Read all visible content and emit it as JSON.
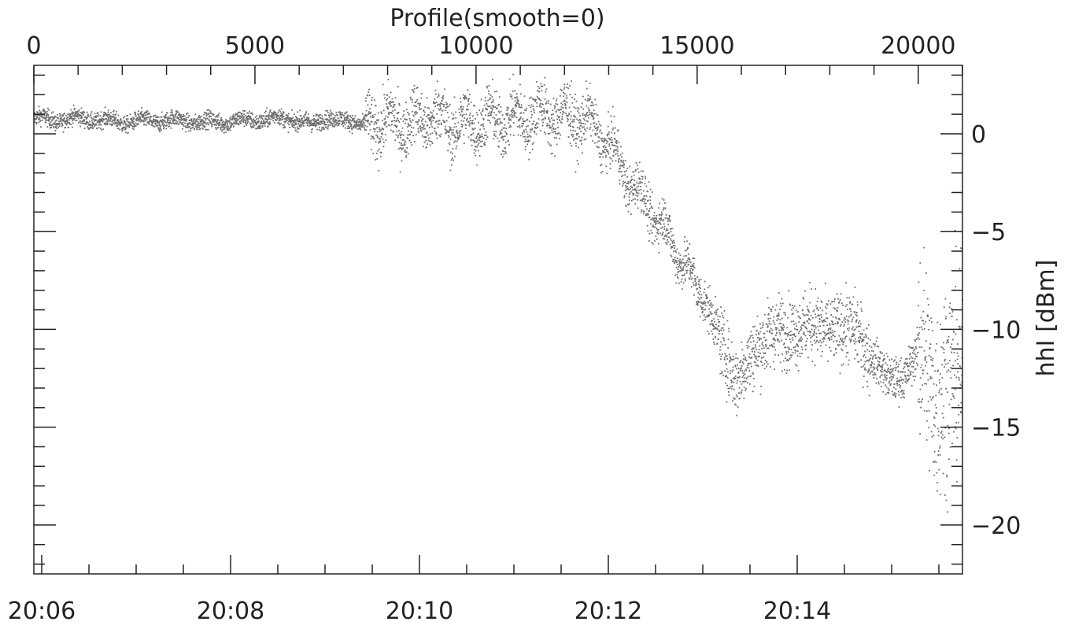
{
  "chart_data": {
    "type": "scatter",
    "title": "Profile(smooth=0)",
    "xlabel": "",
    "ylabel": "hhI [dBm]",
    "x_bottom": {
      "range_minutes": [
        "20:05:55",
        "20:15:45"
      ],
      "tick_labels": [
        "20:06",
        "20:08",
        "20:10",
        "20:12",
        "20:14"
      ],
      "tick_values": [
        "20:06",
        "20:08",
        "20:10",
        "20:12",
        "20:14"
      ]
    },
    "x_top": {
      "label": "Profile",
      "range": [
        0,
        21000
      ],
      "tick_labels": [
        "0",
        "5000",
        "10000",
        "15000",
        "20000"
      ],
      "tick_values": [
        0,
        5000,
        10000,
        15000,
        20000
      ]
    },
    "y_right": {
      "range": [
        -22.5,
        3.5
      ],
      "tick_labels": [
        "0",
        "−5",
        "−10",
        "−15",
        "−20"
      ],
      "tick_values": [
        0,
        -5,
        -10,
        -15,
        -20
      ]
    },
    "marker_color": "#6e6e6e",
    "grid": false,
    "series": [
      {
        "points_profile_vs_dBm": [
          [
            0,
            0.8
          ],
          [
            500,
            0.7
          ],
          [
            1000,
            0.8
          ],
          [
            2000,
            0.6
          ],
          [
            3000,
            0.7
          ],
          [
            4000,
            0.6
          ],
          [
            5000,
            0.7
          ],
          [
            5500,
            0.8
          ],
          [
            6000,
            0.7
          ],
          [
            6300,
            0.4
          ],
          [
            6600,
            0.9
          ],
          [
            7000,
            0.6
          ],
          [
            7500,
            0.6
          ],
          [
            7600,
            0.5
          ],
          [
            8000,
            0.6
          ],
          [
            8500,
            0.5
          ],
          [
            9000,
            0.9
          ],
          [
            9500,
            0.4
          ],
          [
            10000,
            0.6
          ],
          [
            10500,
            0.7
          ],
          [
            11000,
            0.8
          ],
          [
            11500,
            1.0
          ],
          [
            12000,
            0.9
          ],
          [
            12500,
            0.7
          ],
          [
            13000,
            -0.5
          ],
          [
            13500,
            -2.5
          ],
          [
            14000,
            -4.0
          ],
          [
            14500,
            -5.8
          ],
          [
            15000,
            -8.0
          ],
          [
            15500,
            -10.2
          ],
          [
            15900,
            -12.8
          ],
          [
            16300,
            -11.0
          ],
          [
            16700,
            -10.2
          ],
          [
            17200,
            -10.0
          ],
          [
            17700,
            -9.8
          ],
          [
            18200,
            -10.1
          ],
          [
            18600,
            -9.8
          ],
          [
            18900,
            -11.5
          ],
          [
            19300,
            -12.3
          ],
          [
            19700,
            -12.6
          ],
          [
            20100,
            -10.5
          ],
          [
            20400,
            -14.0
          ],
          [
            20800,
            -11.8
          ],
          [
            21000,
            -12.0
          ]
        ]
      }
    ]
  }
}
